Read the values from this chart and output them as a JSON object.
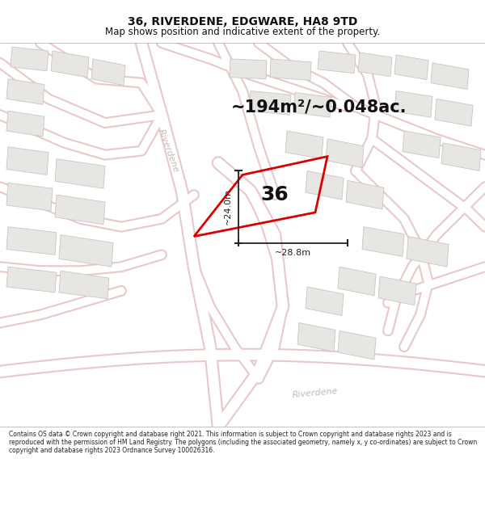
{
  "title": "36, RIVERDENE, EDGWARE, HA8 9TD",
  "subtitle": "Map shows position and indicative extent of the property.",
  "area_text": "~194m²/~0.048ac.",
  "property_number": "36",
  "dim_width": "~28.8m",
  "dim_height": "~24.0m",
  "bg_color": "#f5f3f0",
  "road_color": "#ffffff",
  "road_border_color": "#e8c8c8",
  "building_color": "#e8e6e3",
  "building_border": "#c8c6c3",
  "street_label_color": "#c8b8b8",
  "property_edge": "#dd0000",
  "property_edge_width": 1.8,
  "dimension_color": "#222222",
  "footer_text": "Contains OS data © Crown copyright and database right 2021. This information is subject to Crown copyright and database rights 2023 and is reproduced with the permission of HM Land Registry. The polygons (including the associated geometry, namely x, y co-ordinates) are subject to Crown copyright and database rights 2023 Ordnance Survey 100026316."
}
